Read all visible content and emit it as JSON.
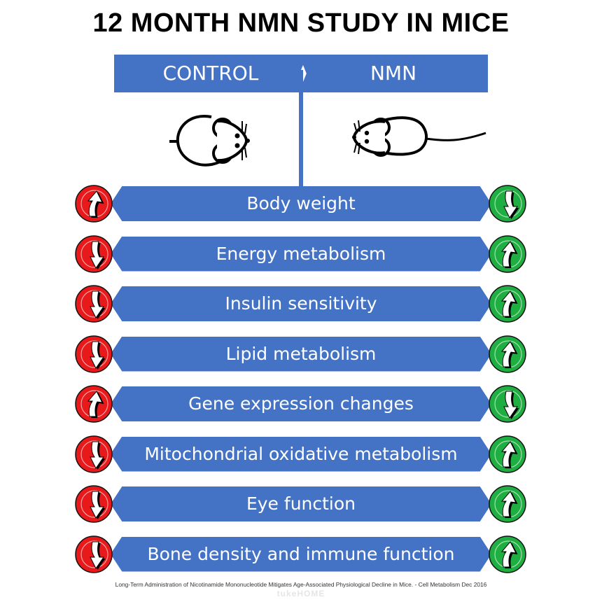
{
  "title": "12 MONTH NMN STUDY IN MICE",
  "columns": {
    "control": "CONTROL",
    "nmn": "NMN"
  },
  "colors": {
    "bar": "#4472c4",
    "red": "#e8191b",
    "green": "#1fae41"
  },
  "rows": [
    {
      "label": "Body weight",
      "control": "up",
      "nmn": "down"
    },
    {
      "label": "Energy metabolism",
      "control": "down",
      "nmn": "up"
    },
    {
      "label": "Insulin sensitivity",
      "control": "down",
      "nmn": "up"
    },
    {
      "label": "Lipid metabolism",
      "control": "down",
      "nmn": "up"
    },
    {
      "label": "Gene expression changes",
      "control": "up",
      "nmn": "down"
    },
    {
      "label": "Mitochondrial oxidative metabolism",
      "control": "down",
      "nmn": "up"
    },
    {
      "label": "Eye function",
      "control": "down",
      "nmn": "up"
    },
    {
      "label": "Bone density and immune function",
      "control": "down",
      "nmn": "up"
    }
  ],
  "footnote": "Long-Term Administration of Nicotinamide Mononucleotide Mitigates Age-Associated Physiological Decline in Mice. - Cell Metabolism Dec 2016",
  "watermark": "tukeHOME"
}
